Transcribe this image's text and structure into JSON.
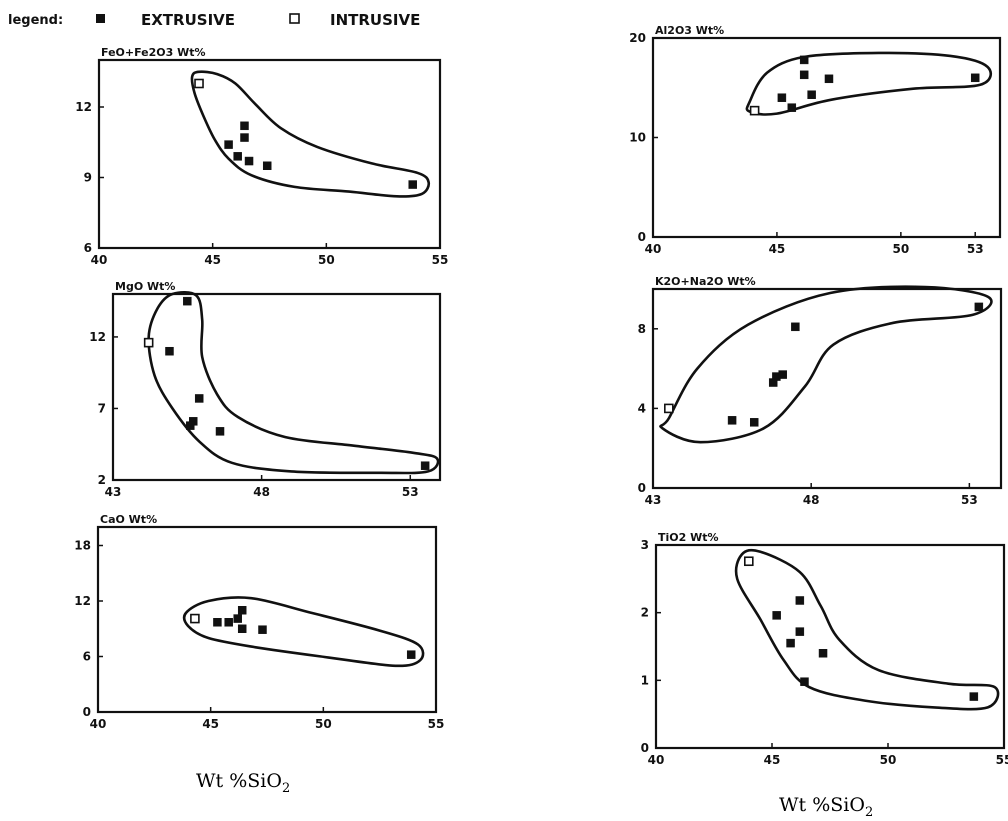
{
  "legend": {
    "title": "legend:",
    "extrusive": "EXTRUSIVE",
    "intrusive": "INTRUSIVE"
  },
  "captions": {
    "left": "Wt %SiO",
    "right": "Wt %SiO",
    "subscript": "2"
  },
  "chart_data": [
    {
      "id": "feo",
      "type": "scatter",
      "title": "FeO+Fe2O3   Wt%",
      "xlim": [
        40,
        55
      ],
      "ylim": [
        6,
        14
      ],
      "xticks": [
        40,
        45,
        50,
        55
      ],
      "yticks": [
        6,
        9,
        12
      ],
      "series": [
        {
          "name": "EXTRUSIVE",
          "points": [
            [
              45.7,
              10.4
            ],
            [
              46.1,
              9.9
            ],
            [
              46.4,
              10.7
            ],
            [
              46.4,
              11.2
            ],
            [
              46.6,
              9.7
            ],
            [
              47.4,
              9.5
            ],
            [
              53.8,
              8.7
            ]
          ]
        },
        {
          "name": "INTRUSIVE",
          "points": [
            [
              44.4,
              13.0
            ]
          ]
        }
      ],
      "envelope": [
        [
          44.1,
          13.3
        ],
        [
          44.2,
          12.6
        ],
        [
          44.6,
          11.6
        ],
        [
          45.1,
          10.6
        ],
        [
          45.7,
          9.8
        ],
        [
          46.7,
          9.1
        ],
        [
          48.6,
          8.6
        ],
        [
          51.0,
          8.4
        ],
        [
          53.1,
          8.2
        ],
        [
          54.2,
          8.3
        ],
        [
          54.5,
          8.8
        ],
        [
          54.0,
          9.2
        ],
        [
          52.0,
          9.6
        ],
        [
          49.6,
          10.3
        ],
        [
          48.0,
          11.1
        ],
        [
          46.9,
          12.1
        ],
        [
          46.0,
          13.0
        ],
        [
          45.2,
          13.4
        ],
        [
          44.4,
          13.5
        ]
      ]
    },
    {
      "id": "mgo",
      "type": "scatter",
      "title": "MgO   Wt%",
      "xlim": [
        43,
        54
      ],
      "ylim": [
        2,
        15
      ],
      "xticks": [
        43,
        48,
        53
      ],
      "yticks": [
        2,
        7,
        12
      ],
      "series": [
        {
          "name": "EXTRUSIVE",
          "points": [
            [
              45.5,
              14.5
            ],
            [
              44.9,
              11.0
            ],
            [
              45.9,
              7.7
            ],
            [
              45.7,
              6.1
            ],
            [
              45.6,
              5.8
            ],
            [
              46.6,
              5.4
            ],
            [
              53.5,
              3.0
            ]
          ]
        },
        {
          "name": "INTRUSIVE",
          "points": [
            [
              44.2,
              11.6
            ]
          ]
        }
      ],
      "envelope": [
        [
          44.2,
          12.0
        ],
        [
          44.5,
          14.0
        ],
        [
          45.0,
          15.0
        ],
        [
          45.8,
          14.9
        ],
        [
          46.0,
          13.2
        ],
        [
          46.0,
          10.6
        ],
        [
          46.5,
          8.0
        ],
        [
          47.2,
          6.4
        ],
        [
          48.8,
          5.0
        ],
        [
          51.1,
          4.4
        ],
        [
          53.1,
          3.9
        ],
        [
          53.9,
          3.5
        ],
        [
          53.6,
          2.6
        ],
        [
          52.0,
          2.5
        ],
        [
          49.0,
          2.6
        ],
        [
          47.0,
          3.2
        ],
        [
          45.9,
          4.7
        ],
        [
          45.0,
          7.0
        ],
        [
          44.4,
          9.3
        ]
      ]
    },
    {
      "id": "cao",
      "type": "scatter",
      "title": "CaO   Wt%",
      "xlim": [
        40,
        55
      ],
      "ylim": [
        0,
        20
      ],
      "xticks": [
        40,
        45,
        50,
        55
      ],
      "xticklabels": [
        "40",
        "45",
        "50",
        "55"
      ],
      "yticks": [
        0,
        6,
        12,
        18
      ],
      "series": [
        {
          "name": "EXTRUSIVE",
          "points": [
            [
              45.3,
              9.7
            ],
            [
              45.8,
              9.7
            ],
            [
              46.2,
              10.1
            ],
            [
              46.4,
              11.0
            ],
            [
              46.4,
              9.0
            ],
            [
              47.3,
              8.9
            ],
            [
              53.9,
              6.2
            ]
          ]
        },
        {
          "name": "INTRUSIVE",
          "points": [
            [
              44.3,
              10.1
            ]
          ]
        }
      ],
      "envelope": [
        [
          43.9,
          10.7
        ],
        [
          44.9,
          12.0
        ],
        [
          46.8,
          12.3
        ],
        [
          49.5,
          10.7
        ],
        [
          52.5,
          8.8
        ],
        [
          54.2,
          7.3
        ],
        [
          54.3,
          5.6
        ],
        [
          53.2,
          5.0
        ],
        [
          50.2,
          5.9
        ],
        [
          47.0,
          7.0
        ],
        [
          44.9,
          8.0
        ],
        [
          44.0,
          9.3
        ]
      ]
    },
    {
      "id": "al2o3",
      "type": "scatter",
      "title": "Al2O3   Wt%",
      "xlim": [
        40,
        54
      ],
      "ylim": [
        0,
        20
      ],
      "xticks": [
        40,
        45,
        50,
        53
      ],
      "xticklabels": [
        "40",
        "45",
        "50",
        "53"
      ],
      "yticks": [
        0,
        10,
        20
      ],
      "series": [
        {
          "name": "EXTRUSIVE",
          "points": [
            [
              45.2,
              14.0
            ],
            [
              45.6,
              13.0
            ],
            [
              46.1,
              17.8
            ],
            [
              46.1,
              16.3
            ],
            [
              46.4,
              14.3
            ],
            [
              47.1,
              15.9
            ],
            [
              53.0,
              16.0
            ]
          ]
        },
        {
          "name": "INTRUSIVE",
          "points": [
            [
              44.1,
              12.7
            ]
          ]
        }
      ],
      "envelope": [
        [
          43.9,
          13.6
        ],
        [
          44.6,
          16.5
        ],
        [
          46.1,
          18.1
        ],
        [
          49.1,
          18.5
        ],
        [
          52.0,
          18.2
        ],
        [
          53.5,
          17.1
        ],
        [
          53.2,
          15.3
        ],
        [
          50.5,
          14.9
        ],
        [
          47.2,
          13.8
        ],
        [
          45.0,
          12.4
        ],
        [
          43.9,
          12.6
        ]
      ]
    },
    {
      "id": "k2o",
      "type": "scatter",
      "title": "K2O+Na2O   Wt%",
      "xlim": [
        43,
        54
      ],
      "ylim": [
        0,
        10
      ],
      "xticks": [
        43,
        48,
        53
      ],
      "yticks": [
        0,
        4,
        8
      ],
      "series": [
        {
          "name": "EXTRUSIVE",
          "points": [
            [
              45.5,
              3.4
            ],
            [
              46.2,
              3.3
            ],
            [
              46.8,
              5.3
            ],
            [
              46.9,
              5.6
            ],
            [
              47.1,
              5.7
            ],
            [
              47.5,
              8.1
            ],
            [
              53.3,
              9.1
            ]
          ]
        },
        {
          "name": "INTRUSIVE",
          "points": [
            [
              43.5,
              4.0
            ]
          ]
        }
      ],
      "envelope": [
        [
          43.5,
          3.5
        ],
        [
          44.4,
          6.0
        ],
        [
          46.0,
          8.2
        ],
        [
          48.6,
          9.8
        ],
        [
          51.6,
          10.1
        ],
        [
          53.6,
          9.6
        ],
        [
          53.1,
          8.7
        ],
        [
          50.6,
          8.3
        ],
        [
          48.7,
          7.2
        ],
        [
          47.8,
          5.1
        ],
        [
          46.5,
          3.0
        ],
        [
          44.5,
          2.3
        ],
        [
          43.3,
          3.0
        ]
      ]
    },
    {
      "id": "tio2",
      "type": "scatter",
      "title": "TiO2   Wt%",
      "xlim": [
        40,
        55
      ],
      "ylim": [
        0,
        3
      ],
      "xticks": [
        40,
        45,
        50,
        55
      ],
      "xticklabels": [
        "40",
        "45",
        "50",
        "55"
      ],
      "yticks": [
        0,
        1,
        2,
        3
      ],
      "series": [
        {
          "name": "EXTRUSIVE",
          "points": [
            [
              45.2,
              1.96
            ],
            [
              45.8,
              1.55
            ],
            [
              46.2,
              2.18
            ],
            [
              46.2,
              1.72
            ],
            [
              46.4,
              0.98
            ],
            [
              47.2,
              1.4
            ],
            [
              53.7,
              0.76
            ]
          ]
        },
        {
          "name": "INTRUSIVE",
          "points": [
            [
              44.0,
              2.76
            ]
          ]
        }
      ],
      "envelope": [
        [
          44.5,
          2.9
        ],
        [
          46.2,
          2.6
        ],
        [
          47.1,
          2.1
        ],
        [
          47.9,
          1.6
        ],
        [
          49.6,
          1.15
        ],
        [
          52.6,
          0.95
        ],
        [
          54.6,
          0.9
        ],
        [
          54.3,
          0.6
        ],
        [
          52.0,
          0.6
        ],
        [
          49.0,
          0.7
        ],
        [
          46.6,
          0.9
        ],
        [
          45.5,
          1.3
        ],
        [
          44.5,
          1.9
        ],
        [
          43.5,
          2.5
        ],
        [
          43.7,
          2.86
        ]
      ]
    }
  ]
}
